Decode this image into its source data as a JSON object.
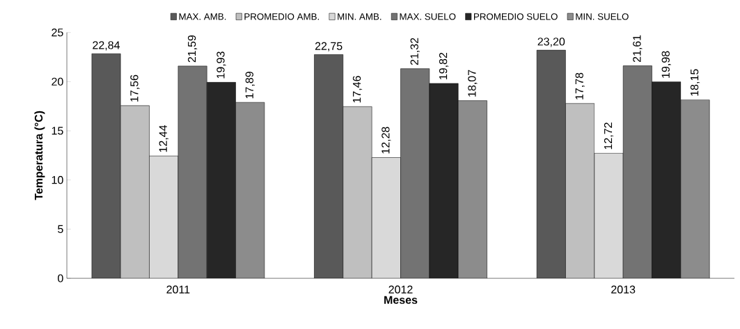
{
  "chart_data": {
    "type": "bar",
    "xlabel": "Meses",
    "ylabel": "Temperatura (°C)",
    "categories": [
      "2011",
      "2012",
      "2013"
    ],
    "series": [
      {
        "name": "MAX. AMB.",
        "color": "#595959",
        "values": [
          22.84,
          22.75,
          23.2
        ],
        "value_labels": [
          "22,84",
          "22,75",
          "23,20"
        ]
      },
      {
        "name": "PROMEDIO AMB.",
        "color": "#bfbfbf",
        "values": [
          17.56,
          17.46,
          17.78
        ],
        "value_labels": [
          "17,56",
          "17,46",
          "17,78"
        ]
      },
      {
        "name": "MIN. AMB.",
        "color": "#d9d9d9",
        "values": [
          12.44,
          12.28,
          12.72
        ],
        "value_labels": [
          "12,44",
          "12,28",
          "12,72"
        ]
      },
      {
        "name": "MAX. SUELO",
        "color": "#737373",
        "values": [
          21.59,
          21.32,
          21.61
        ],
        "value_labels": [
          "21,59",
          "21,32",
          "21,61"
        ]
      },
      {
        "name": "PROMEDIO SUELO",
        "color": "#262626",
        "values": [
          19.93,
          19.82,
          19.98
        ],
        "value_labels": [
          "19,93",
          "19,82",
          "19,98"
        ]
      },
      {
        "name": "MIN. SUELO",
        "color": "#8c8c8c",
        "values": [
          17.89,
          18.07,
          18.15
        ],
        "value_labels": [
          "17,89",
          "18,07",
          "18,15"
        ]
      }
    ],
    "ylim": [
      0,
      25
    ],
    "yticks": [
      0,
      5,
      10,
      15,
      20,
      25
    ],
    "grid": false,
    "legend": "top"
  }
}
